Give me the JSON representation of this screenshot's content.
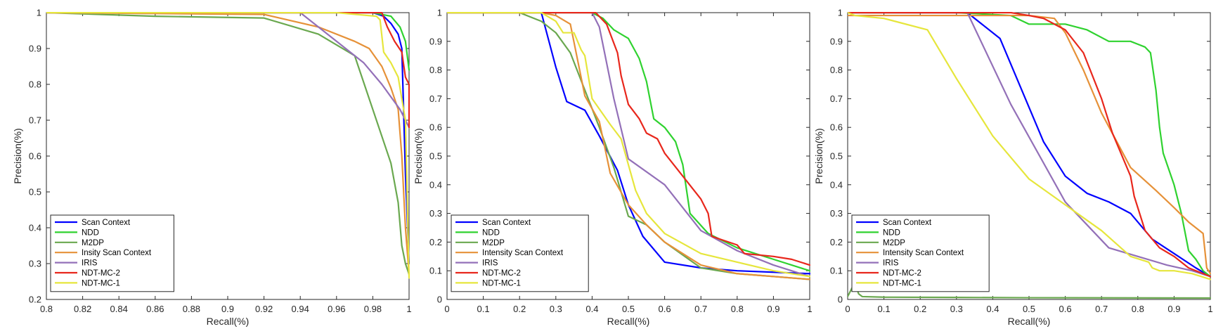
{
  "chart_data": [
    {
      "type": "line",
      "xlabel": "Recall(%)",
      "ylabel": "Precision(%)",
      "xlim": [
        0.8,
        1.0
      ],
      "ylim": [
        0.2,
        1.0
      ],
      "xticks": [
        0.8,
        0.82,
        0.84,
        0.86,
        0.88,
        0.9,
        0.92,
        0.94,
        0.96,
        0.98,
        1.0
      ],
      "xtick_labels": [
        "0.8",
        "0.82",
        "0.84",
        "0.86",
        "0.88",
        "0.9",
        "0.92",
        "0.94",
        "0.96",
        "0.98",
        "1"
      ],
      "yticks": [
        0.2,
        0.3,
        0.4,
        0.5,
        0.6,
        0.7,
        0.8,
        0.9,
        1.0
      ],
      "ytick_labels": [
        "0.2",
        "0.3",
        "0.4",
        "0.5",
        "0.6",
        "0.7",
        "0.8",
        "0.9",
        "1"
      ],
      "legend_position": "bottom-left",
      "series": [
        {
          "name": "Scan Context",
          "color": "#0000ff",
          "x": [
            0.8,
            0.98,
            0.986,
            0.99,
            0.994,
            0.996,
            0.998,
            1.0
          ],
          "y": [
            1.0,
            1.0,
            0.99,
            0.97,
            0.94,
            0.9,
            0.55,
            0.3
          ]
        },
        {
          "name": "NDD",
          "color": "#2fd22f",
          "x": [
            0.8,
            0.98,
            0.99,
            0.995,
            0.998,
            1.0
          ],
          "y": [
            1.0,
            1.0,
            0.99,
            0.96,
            0.92,
            0.84
          ]
        },
        {
          "name": "M2DP",
          "color": "#6aa84f",
          "x": [
            0.8,
            0.86,
            0.92,
            0.95,
            0.97,
            0.98,
            0.99,
            0.994,
            0.996,
            0.998,
            1.0
          ],
          "y": [
            1.0,
            0.99,
            0.985,
            0.94,
            0.88,
            0.73,
            0.58,
            0.47,
            0.35,
            0.3,
            0.27
          ]
        },
        {
          "name": "Insity Scan Context",
          "color": "#e69138",
          "x": [
            0.8,
            0.92,
            0.95,
            0.97,
            0.978,
            0.985,
            0.99,
            0.994,
            0.996,
            0.998,
            1.0
          ],
          "y": [
            1.0,
            0.995,
            0.96,
            0.92,
            0.9,
            0.85,
            0.79,
            0.73,
            0.6,
            0.4,
            0.27
          ]
        },
        {
          "name": "IRIS",
          "color": "#9370b8",
          "x": [
            0.8,
            0.94,
            0.96,
            0.975,
            0.985,
            0.995,
            1.0
          ],
          "y": [
            1.0,
            1.0,
            0.92,
            0.86,
            0.8,
            0.73,
            0.68
          ]
        },
        {
          "name": "NDT-MC-2",
          "color": "#e8271c",
          "x": [
            0.8,
            0.98,
            0.985,
            0.988,
            0.992,
            0.996,
            0.998,
            1.0,
            1.0
          ],
          "y": [
            1.0,
            1.0,
            1.0,
            0.96,
            0.92,
            0.89,
            0.82,
            0.8,
            0.68
          ]
        },
        {
          "name": "NDT-MC-1",
          "color": "#e6e63c",
          "x": [
            0.8,
            0.96,
            0.982,
            0.984,
            0.986,
            0.99,
            0.994,
            0.998,
            1.0
          ],
          "y": [
            1.0,
            1.0,
            0.99,
            0.98,
            0.89,
            0.86,
            0.82,
            0.7,
            0.26
          ]
        }
      ]
    },
    {
      "type": "line",
      "xlabel": "Recall(%)",
      "ylabel": "Precision(%)",
      "xlim": [
        0,
        1
      ],
      "ylim": [
        0,
        1
      ],
      "xticks": [
        0,
        0.1,
        0.2,
        0.3,
        0.4,
        0.5,
        0.6,
        0.7,
        0.8,
        0.9,
        1
      ],
      "xtick_labels": [
        "0",
        "0.1",
        "0.2",
        "0.3",
        "0.4",
        "0.5",
        "0.6",
        "0.7",
        "0.8",
        "0.9",
        "1"
      ],
      "yticks": [
        0,
        0.1,
        0.2,
        0.3,
        0.4,
        0.5,
        0.6,
        0.7,
        0.8,
        0.9,
        1
      ],
      "ytick_labels": [
        "0",
        "0.1",
        "0.2",
        "0.3",
        "0.4",
        "0.5",
        "0.6",
        "0.7",
        "0.8",
        "0.9",
        "1"
      ],
      "legend_position": "bottom-left",
      "series": [
        {
          "name": "Scan Context",
          "color": "#0000ff",
          "x": [
            0,
            0.26,
            0.3,
            0.33,
            0.38,
            0.42,
            0.47,
            0.5,
            0.54,
            0.6,
            0.7,
            0.8,
            1.0
          ],
          "y": [
            1.0,
            1.0,
            0.81,
            0.69,
            0.66,
            0.57,
            0.45,
            0.33,
            0.22,
            0.13,
            0.11,
            0.1,
            0.09
          ]
        },
        {
          "name": "NDD",
          "color": "#2fd22f",
          "x": [
            0,
            0.26,
            0.4,
            0.43,
            0.46,
            0.5,
            0.53,
            0.55,
            0.57,
            0.6,
            0.63,
            0.65,
            0.67,
            0.72,
            0.8,
            0.9,
            1.0
          ],
          "y": [
            1.0,
            1.0,
            1.0,
            0.98,
            0.94,
            0.91,
            0.84,
            0.76,
            0.63,
            0.6,
            0.55,
            0.47,
            0.3,
            0.23,
            0.18,
            0.14,
            0.1
          ]
        },
        {
          "name": "M2DP",
          "color": "#6aa84f",
          "x": [
            0,
            0.2,
            0.26,
            0.3,
            0.34,
            0.38,
            0.42,
            0.46,
            0.5,
            0.55,
            0.6,
            0.7,
            0.8,
            1.0
          ],
          "y": [
            1.0,
            1.0,
            0.97,
            0.93,
            0.86,
            0.73,
            0.6,
            0.46,
            0.29,
            0.26,
            0.2,
            0.11,
            0.09,
            0.07
          ]
        },
        {
          "name": "Intensity Scan Context",
          "color": "#e69138",
          "x": [
            0,
            0.26,
            0.3,
            0.34,
            0.38,
            0.42,
            0.45,
            0.5,
            0.55,
            0.6,
            0.7,
            0.8,
            1.0
          ],
          "y": [
            1.0,
            1.0,
            0.99,
            0.96,
            0.71,
            0.62,
            0.44,
            0.33,
            0.26,
            0.2,
            0.12,
            0.09,
            0.07
          ]
        },
        {
          "name": "IRIS",
          "color": "#9370b8",
          "x": [
            0,
            0.26,
            0.4,
            0.42,
            0.46,
            0.5,
            0.6,
            0.65,
            0.7,
            0.8,
            0.9,
            1.0
          ],
          "y": [
            1.0,
            1.0,
            1.0,
            0.95,
            0.7,
            0.49,
            0.4,
            0.32,
            0.24,
            0.17,
            0.12,
            0.08
          ]
        },
        {
          "name": "NDT-MC-2",
          "color": "#e8271c",
          "x": [
            0,
            0.3,
            0.41,
            0.44,
            0.47,
            0.48,
            0.5,
            0.53,
            0.55,
            0.58,
            0.6,
            0.65,
            0.7,
            0.72,
            0.73,
            0.8,
            0.82,
            0.9,
            0.95,
            1.0
          ],
          "y": [
            1.0,
            1.0,
            1.0,
            0.96,
            0.86,
            0.78,
            0.68,
            0.63,
            0.58,
            0.56,
            0.51,
            0.43,
            0.35,
            0.3,
            0.22,
            0.19,
            0.16,
            0.15,
            0.14,
            0.12
          ]
        },
        {
          "name": "NDT-MC-1",
          "color": "#e6e63c",
          "x": [
            0,
            0.26,
            0.3,
            0.32,
            0.35,
            0.37,
            0.38,
            0.4,
            0.45,
            0.48,
            0.52,
            0.55,
            0.6,
            0.7,
            0.8,
            0.9,
            1.0
          ],
          "y": [
            1.0,
            1.0,
            0.97,
            0.93,
            0.93,
            0.87,
            0.85,
            0.7,
            0.61,
            0.56,
            0.38,
            0.3,
            0.23,
            0.16,
            0.13,
            0.1,
            0.08
          ]
        }
      ]
    },
    {
      "type": "line",
      "xlabel": "Recall(%)",
      "ylabel": "Precision(%)",
      "xlim": [
        0,
        1
      ],
      "ylim": [
        0,
        1
      ],
      "xticks": [
        0,
        0.1,
        0.2,
        0.3,
        0.4,
        0.5,
        0.6,
        0.7,
        0.8,
        0.9,
        1
      ],
      "xtick_labels": [
        "0",
        "0.1",
        "0.2",
        "0.3",
        "0.4",
        "0.5",
        "0.6",
        "0.7",
        "0.8",
        "0.9",
        "1"
      ],
      "yticks": [
        0,
        0.1,
        0.2,
        0.3,
        0.4,
        0.5,
        0.6,
        0.7,
        0.8,
        0.9,
        1
      ],
      "ytick_labels": [
        "0",
        "0.1",
        "0.2",
        "0.3",
        "0.4",
        "0.5",
        "0.6",
        "0.7",
        "0.8",
        "0.9",
        "1"
      ],
      "legend_position": "bottom-left",
      "series": [
        {
          "name": "Scan Context",
          "color": "#0000ff",
          "x": [
            0,
            0.33,
            0.42,
            0.54,
            0.6,
            0.66,
            0.72,
            0.78,
            0.84,
            0.9,
            0.96,
            1.0
          ],
          "y": [
            1.0,
            1.0,
            0.91,
            0.55,
            0.43,
            0.37,
            0.34,
            0.3,
            0.21,
            0.16,
            0.11,
            0.08
          ]
        },
        {
          "name": "NDD",
          "color": "#2fd22f",
          "x": [
            0,
            0.3,
            0.45,
            0.5,
            0.6,
            0.66,
            0.72,
            0.78,
            0.8,
            0.82,
            0.835,
            0.85,
            0.86,
            0.87,
            0.9,
            0.92,
            0.94,
            0.96,
            0.98,
            1.0
          ],
          "y": [
            1.0,
            1.0,
            0.99,
            0.96,
            0.96,
            0.94,
            0.9,
            0.9,
            0.89,
            0.88,
            0.86,
            0.73,
            0.6,
            0.51,
            0.4,
            0.3,
            0.17,
            0.14,
            0.1,
            0.08
          ]
        },
        {
          "name": "M2DP",
          "color": "#6aa84f",
          "x": [
            0,
            0.012,
            0.02,
            0.03,
            0.04,
            0.1,
            0.3,
            0.5,
            1.0
          ],
          "y": [
            0.01,
            0.04,
            0.06,
            0.02,
            0.01,
            0.008,
            0.007,
            0.006,
            0.005
          ]
        },
        {
          "name": "Intensity Scan Context",
          "color": "#e69138",
          "x": [
            0,
            0.45,
            0.5,
            0.57,
            0.6,
            0.65,
            0.7,
            0.78,
            0.85,
            0.9,
            0.94,
            0.98,
            0.99,
            1.0
          ],
          "y": [
            0.99,
            0.99,
            0.99,
            0.98,
            0.93,
            0.8,
            0.65,
            0.46,
            0.38,
            0.32,
            0.27,
            0.23,
            0.11,
            0.09
          ]
        },
        {
          "name": "IRIS",
          "color": "#9370b8",
          "x": [
            0,
            0.33,
            0.45,
            0.6,
            0.72,
            0.8,
            0.88,
            0.95,
            1.0
          ],
          "y": [
            1.0,
            1.0,
            0.68,
            0.34,
            0.18,
            0.15,
            0.12,
            0.1,
            0.08
          ]
        },
        {
          "name": "NDT-MC-2",
          "color": "#e8271c",
          "x": [
            0,
            0.45,
            0.5,
            0.54,
            0.6,
            0.65,
            0.7,
            0.73,
            0.76,
            0.78,
            0.79,
            0.82,
            0.86,
            0.9,
            0.94,
            0.98,
            1.0
          ],
          "y": [
            1.0,
            1.0,
            0.99,
            0.98,
            0.94,
            0.86,
            0.7,
            0.58,
            0.49,
            0.43,
            0.36,
            0.24,
            0.18,
            0.15,
            0.11,
            0.09,
            0.08
          ]
        },
        {
          "name": "NDT-MC-1",
          "color": "#e6e63c",
          "x": [
            0,
            0.02,
            0.1,
            0.22,
            0.3,
            0.4,
            0.5,
            0.6,
            0.7,
            0.78,
            0.83,
            0.84,
            0.86,
            0.9,
            0.95,
            1.0
          ],
          "y": [
            1.0,
            0.99,
            0.98,
            0.94,
            0.77,
            0.57,
            0.42,
            0.33,
            0.24,
            0.15,
            0.13,
            0.11,
            0.1,
            0.1,
            0.09,
            0.07
          ]
        }
      ]
    }
  ]
}
